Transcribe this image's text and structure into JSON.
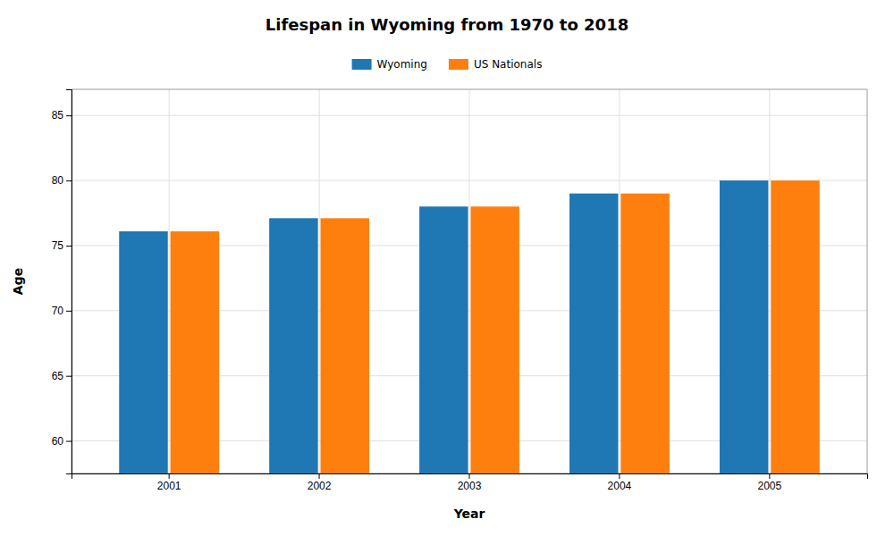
{
  "chart_data": {
    "type": "bar",
    "title": "Lifespan in Wyoming from 1970 to 2018",
    "x_label": "Year",
    "y_label": "Age",
    "categories": [
      "2001",
      "2002",
      "2003",
      "2004",
      "2005"
    ],
    "series": [
      {
        "name": "Wyoming",
        "values": [
          76.1,
          77.1,
          78.0,
          79.0,
          80.0
        ]
      },
      {
        "name": "US Nationals",
        "values": [
          76.1,
          77.1,
          78.0,
          79.0,
          80.0
        ]
      }
    ],
    "ylim": [
      57.5,
      87
    ],
    "yticks": [
      60,
      65,
      70,
      75,
      80,
      85
    ],
    "grid": true,
    "legend": "top"
  }
}
